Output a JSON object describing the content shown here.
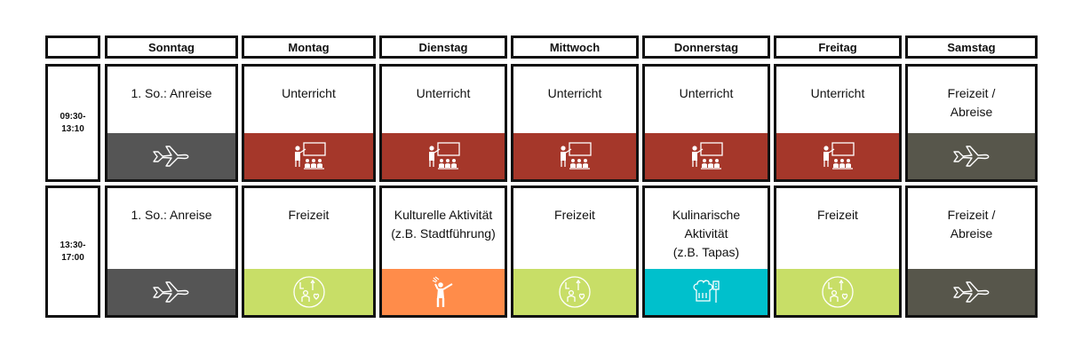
{
  "header": {
    "corner": "",
    "days": [
      "Sonntag",
      "Montag",
      "Dienstag",
      "Mittwoch",
      "Donnerstag",
      "Freitag",
      "Samstag"
    ]
  },
  "rows": [
    {
      "time_lines": [
        "09:30-",
        "13:10"
      ],
      "cells": [
        {
          "lines": [
            "1. So.: Anreise"
          ],
          "icon": "airplane-icon",
          "color": "#555555"
        },
        {
          "lines": [
            "Unterricht"
          ],
          "icon": "classroom-icon",
          "color": "#a5372a"
        },
        {
          "lines": [
            "Unterricht"
          ],
          "icon": "classroom-icon",
          "color": "#a5372a"
        },
        {
          "lines": [
            "Unterricht"
          ],
          "icon": "classroom-icon",
          "color": "#a5372a"
        },
        {
          "lines": [
            "Unterricht"
          ],
          "icon": "classroom-icon",
          "color": "#a5372a"
        },
        {
          "lines": [
            "Unterricht"
          ],
          "icon": "classroom-icon",
          "color": "#a5372a"
        },
        {
          "lines": [
            "Freizeit /",
            "Abreise"
          ],
          "icon": "airplane-icon",
          "color": "#57564b"
        }
      ]
    },
    {
      "time_lines": [
        "13:30-",
        "17:00"
      ],
      "cells": [
        {
          "lines": [
            "1. So.: Anreise"
          ],
          "icon": "airplane-icon",
          "color": "#555555"
        },
        {
          "lines": [
            "Freizeit"
          ],
          "icon": "leisure-icon",
          "color": "#c8de67"
        },
        {
          "lines": [
            "Kulturelle Aktivität",
            "(z.B. Stadtführung)"
          ],
          "icon": "tour-guide-icon",
          "color": "#ff8c4a"
        },
        {
          "lines": [
            "Freizeit"
          ],
          "icon": "leisure-icon",
          "color": "#c8de67"
        },
        {
          "lines": [
            "Kulinarische",
            "Aktivität",
            "(z.B. Tapas)"
          ],
          "icon": "chef-icon",
          "color": "#00c0cc"
        },
        {
          "lines": [
            "Freizeit"
          ],
          "icon": "leisure-icon",
          "color": "#c8de67"
        },
        {
          "lines": [
            "Freizeit /",
            "Abreise"
          ],
          "icon": "airplane-icon",
          "color": "#57564b"
        }
      ]
    }
  ]
}
